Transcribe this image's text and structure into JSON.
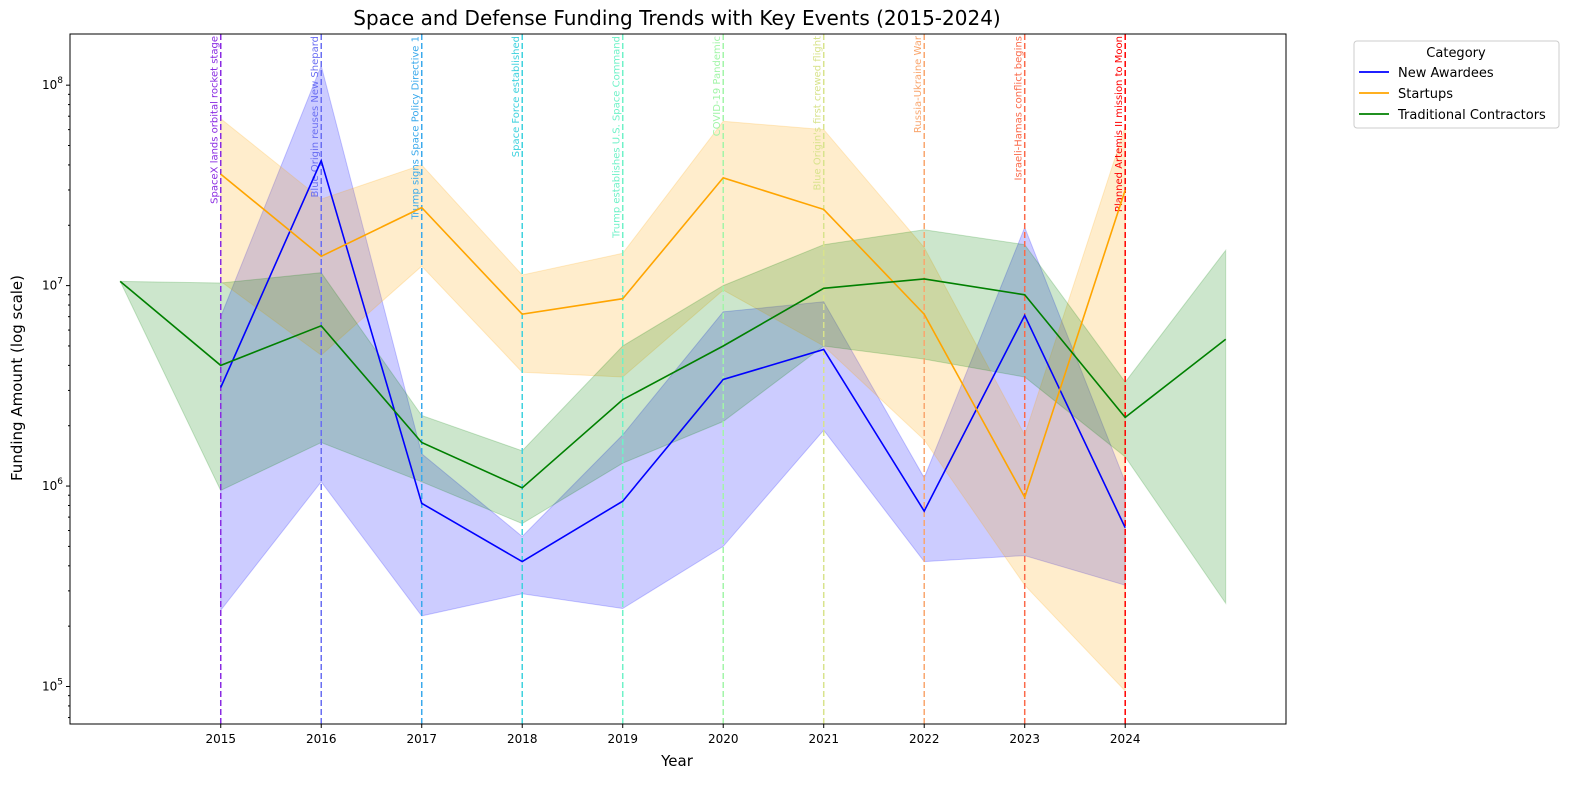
{
  "chart_data": {
    "type": "line",
    "title": "Space and Defense Funding Trends with Key Events (2015-2024)",
    "xlabel": "Year",
    "ylabel": "Funding Amount (log scale)",
    "yscale": "log",
    "xlim": [
      2013.5,
      2025.6
    ],
    "ylim": [
      65000,
      180000000
    ],
    "x_ticks": [
      2015,
      2016,
      2017,
      2018,
      2019,
      2020,
      2021,
      2022,
      2023,
      2024
    ],
    "y_ticks": [
      {
        "value": 100000,
        "base": "10",
        "exp": "5"
      },
      {
        "value": 1000000,
        "base": "10",
        "exp": "6"
      },
      {
        "value": 10000000,
        "base": "10",
        "exp": "7"
      },
      {
        "value": 100000000,
        "base": "10",
        "exp": "8"
      }
    ],
    "legend": {
      "title": "Category",
      "position": "outside-top-right"
    },
    "series": [
      {
        "name": "New Awardees",
        "color": "#0000ff",
        "x": [
          2015,
          2016,
          2017,
          2018,
          2019,
          2020,
          2021,
          2022,
          2023,
          2024
        ],
        "y": [
          3100000,
          42000000,
          820000,
          420000,
          840000,
          3400000,
          4800000,
          750000,
          7100000,
          620000
        ],
        "lower": [
          240000,
          1050000,
          225000,
          290000,
          245000,
          500000,
          1900000,
          420000,
          450000,
          320000
        ],
        "upper": [
          7000000,
          125000000,
          1450000,
          560000,
          1800000,
          7400000,
          8300000,
          1100000,
          19500000,
          1050000
        ]
      },
      {
        "name": "Startups",
        "color": "#ffa500",
        "x": [
          2015,
          2016,
          2017,
          2018,
          2019,
          2020,
          2021,
          2022,
          2023,
          2024
        ],
        "y": [
          36000000,
          14000000,
          24500000,
          7200000,
          8600000,
          34500000,
          24000000,
          7200000,
          880000,
          30000000
        ],
        "lower": [
          10500000,
          4500000,
          12500000,
          3700000,
          3500000,
          9500000,
          5000000,
          1700000,
          320000,
          95000
        ],
        "upper": [
          68000000,
          27000000,
          40000000,
          11300000,
          14500000,
          66000000,
          60000000,
          15500000,
          1800000,
          62000000
        ]
      },
      {
        "name": "Traditional Contractors",
        "color": "#008000",
        "x": [
          2014,
          2015,
          2016,
          2017,
          2018,
          2019,
          2020,
          2021,
          2022,
          2023,
          2024,
          2025
        ],
        "y": [
          10500000,
          4000000,
          6300000,
          1650000,
          980000,
          2700000,
          5000000,
          9700000,
          10800000,
          9000000,
          2200000,
          5400000
        ],
        "lower": [
          10500000,
          950000,
          1650000,
          1050000,
          650000,
          1300000,
          2100000,
          5000000,
          4300000,
          3500000,
          1400000,
          260000
        ],
        "upper": [
          10500000,
          10300000,
          11600000,
          2250000,
          1500000,
          5000000,
          10000000,
          16000000,
          19000000,
          16000000,
          3300000,
          15000000
        ]
      }
    ],
    "events": [
      {
        "year": 2015,
        "label": "SpaceX lands orbital rocket stage",
        "color": "#8a2be2"
      },
      {
        "year": 2016,
        "label": "Blue Origin reuses New Shepard",
        "color": "#6a6ef2"
      },
      {
        "year": 2017,
        "label": "Trump signs Space Policy Directive 1",
        "color": "#3aa9ec"
      },
      {
        "year": 2018,
        "label": "Space Force established",
        "color": "#3ed2de"
      },
      {
        "year": 2019,
        "label": "Trump establishes U.S. Space Command",
        "color": "#6ff2c8"
      },
      {
        "year": 2020,
        "label": "COVID-19 Pandemic",
        "color": "#a2f5a8"
      },
      {
        "year": 2021,
        "label": "Blue Origin's first crewed flight",
        "color": "#d8e38c"
      },
      {
        "year": 2022,
        "label": "Russia-Ukraine War",
        "color": "#f9a66e"
      },
      {
        "year": 2023,
        "label": "Israeli-Hamas conflict begins",
        "color": "#fb6a4a"
      },
      {
        "year": 2024,
        "label": "Planned Artemis II mission to Moon",
        "color": "#ff0000"
      }
    ]
  }
}
